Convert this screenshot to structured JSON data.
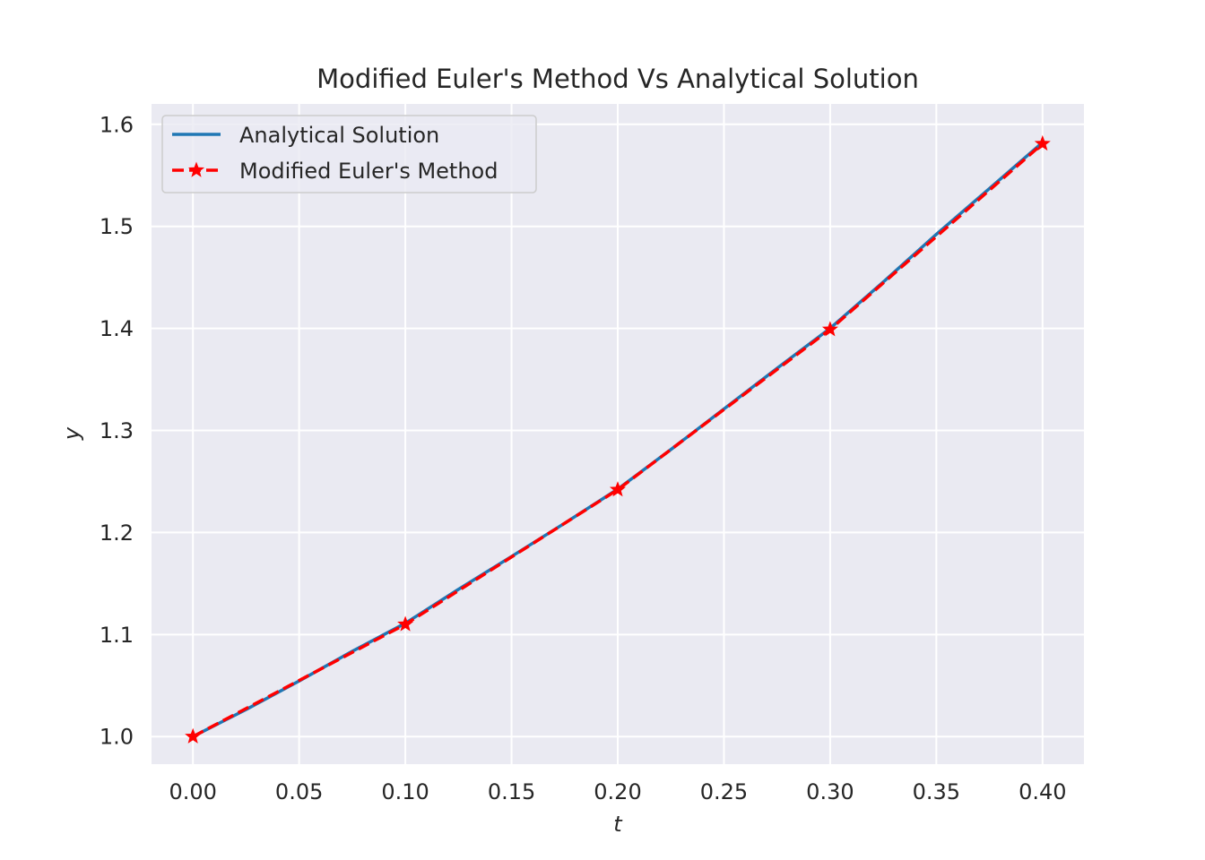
{
  "chart_data": {
    "type": "line",
    "title": "Modified Euler's Method Vs Analytical Solution",
    "xlabel": "t",
    "ylabel": "y",
    "xlim": [
      -0.0195,
      0.4195
    ],
    "ylim": [
      0.973,
      1.62
    ],
    "xticks": [
      0.0,
      0.05,
      0.1,
      0.15,
      0.2,
      0.25,
      0.3,
      0.35,
      0.4
    ],
    "xtick_labels": [
      "0.00",
      "0.05",
      "0.10",
      "0.15",
      "0.20",
      "0.25",
      "0.30",
      "0.35",
      "0.40"
    ],
    "yticks": [
      1.0,
      1.1,
      1.2,
      1.3,
      1.4,
      1.5,
      1.6
    ],
    "ytick_labels": [
      "1.0",
      "1.1",
      "1.2",
      "1.3",
      "1.4",
      "1.5",
      "1.6"
    ],
    "grid": true,
    "legend_position": "upper left",
    "series": [
      {
        "name": "Analytical Solution",
        "color": "#1f77b4",
        "style": "solid",
        "marker": "none",
        "x": [
          0.0,
          0.025,
          0.05,
          0.075,
          0.1,
          0.125,
          0.15,
          0.175,
          0.2,
          0.225,
          0.25,
          0.275,
          0.3,
          0.325,
          0.35,
          0.375,
          0.4
        ],
        "y": [
          1.0,
          1.0265,
          1.0545,
          1.0836,
          1.1111,
          1.1443,
          1.1765,
          1.2091,
          1.2425,
          1.2813,
          1.3211,
          1.3609,
          1.4001,
          1.4455,
          1.4922,
          1.5371,
          1.5822
        ]
      },
      {
        "name": "Modified Euler's Method",
        "color": "#ff0000",
        "style": "dashed",
        "marker": "star",
        "x": [
          0.0,
          0.1,
          0.2,
          0.3,
          0.4
        ],
        "y": [
          1.0,
          1.11,
          1.242,
          1.399,
          1.581
        ]
      }
    ]
  }
}
